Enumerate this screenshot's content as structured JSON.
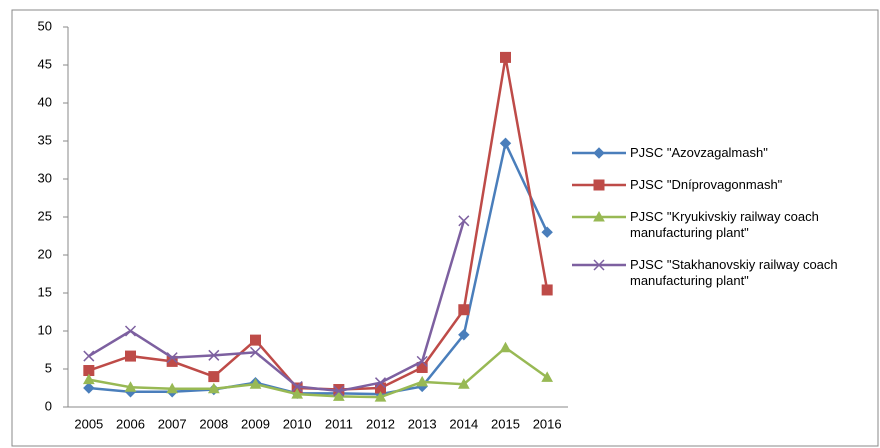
{
  "chart_data": {
    "type": "line",
    "categories": [
      "2005",
      "2006",
      "2007",
      "2008",
      "2009",
      "2010",
      "2011",
      "2012",
      "2013",
      "2014",
      "2015",
      "2016"
    ],
    "series": [
      {
        "name": "PJSC \"Azovzagalmash\"",
        "color": "#4a7ebb",
        "marker": "diamond",
        "values": [
          2.5,
          2,
          2,
          2.3,
          3.2,
          1.8,
          1.8,
          1.7,
          2.7,
          9.5,
          34.7,
          23
        ]
      },
      {
        "name": "PJSC \"Dníprovagonmash\"",
        "color": "#be4b48",
        "marker": "square",
        "values": [
          4.8,
          6.7,
          6,
          4,
          8.8,
          2.5,
          2.3,
          2.5,
          5.2,
          12.8,
          46,
          15.4
        ]
      },
      {
        "name": "PJSC \"Kryukivskiy railway coach manufacturing plant\"",
        "color": "#98b954",
        "marker": "triangle",
        "values": [
          3.6,
          2.6,
          2.4,
          2.4,
          3,
          1.7,
          1.4,
          1.3,
          3.3,
          3,
          7.8,
          3.9
        ]
      },
      {
        "name": "PJSC \"Stakhanovskiy railway coach manufacturing plant\"",
        "color": "#7d60a0",
        "marker": "x",
        "values": [
          6.7,
          10,
          6.5,
          6.8,
          7.2,
          2.7,
          2.1,
          3.2,
          6,
          24.5,
          null,
          null
        ]
      }
    ],
    "ylim": [
      0,
      50
    ],
    "yticks": [
      0,
      5,
      10,
      15,
      20,
      25,
      30,
      35,
      40,
      45,
      50
    ],
    "grid": false,
    "legend": "right"
  }
}
